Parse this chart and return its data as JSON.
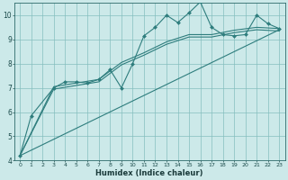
{
  "xlabel": "Humidex (Indice chaleur)",
  "ylabel": "",
  "background_color": "#cce9e9",
  "grid_color": "#85bebe",
  "line_color": "#2e7d7d",
  "xlim": [
    -0.5,
    23.5
  ],
  "ylim": [
    4,
    10.5
  ],
  "yticks": [
    4,
    5,
    6,
    7,
    8,
    9,
    10
  ],
  "xticks": [
    0,
    1,
    2,
    3,
    4,
    5,
    6,
    7,
    8,
    9,
    10,
    11,
    12,
    13,
    14,
    15,
    16,
    17,
    18,
    19,
    20,
    21,
    22,
    23
  ],
  "series": [
    {
      "x": [
        0,
        1,
        3,
        4,
        5,
        6,
        7,
        8,
        9,
        10,
        11,
        12,
        13,
        14,
        15,
        16,
        17,
        18,
        19,
        20,
        21,
        22,
        23
      ],
      "y": [
        4.2,
        5.85,
        7.0,
        7.25,
        7.25,
        7.2,
        7.35,
        7.75,
        7.0,
        8.0,
        9.15,
        9.5,
        10.0,
        9.7,
        10.1,
        10.55,
        9.5,
        9.2,
        9.15,
        9.2,
        10.0,
        9.65,
        9.45
      ],
      "marker": "D",
      "markersize": 2.0,
      "linewidth": 0.8
    },
    {
      "x": [
        0,
        23
      ],
      "y": [
        4.2,
        9.4
      ],
      "marker": null,
      "markersize": 0,
      "linewidth": 0.8
    },
    {
      "x": [
        0,
        3,
        5,
        7,
        9,
        11,
        13,
        15,
        17,
        19,
        21,
        23
      ],
      "y": [
        4.2,
        7.05,
        7.2,
        7.35,
        8.05,
        8.45,
        8.9,
        9.2,
        9.2,
        9.38,
        9.5,
        9.45
      ],
      "marker": null,
      "markersize": 0,
      "linewidth": 0.8
    },
    {
      "x": [
        0,
        3,
        5,
        7,
        9,
        11,
        13,
        15,
        17,
        19,
        21,
        23
      ],
      "y": [
        4.2,
        6.95,
        7.1,
        7.25,
        7.95,
        8.35,
        8.8,
        9.1,
        9.1,
        9.28,
        9.4,
        9.35
      ],
      "marker": null,
      "markersize": 0,
      "linewidth": 0.8
    }
  ]
}
